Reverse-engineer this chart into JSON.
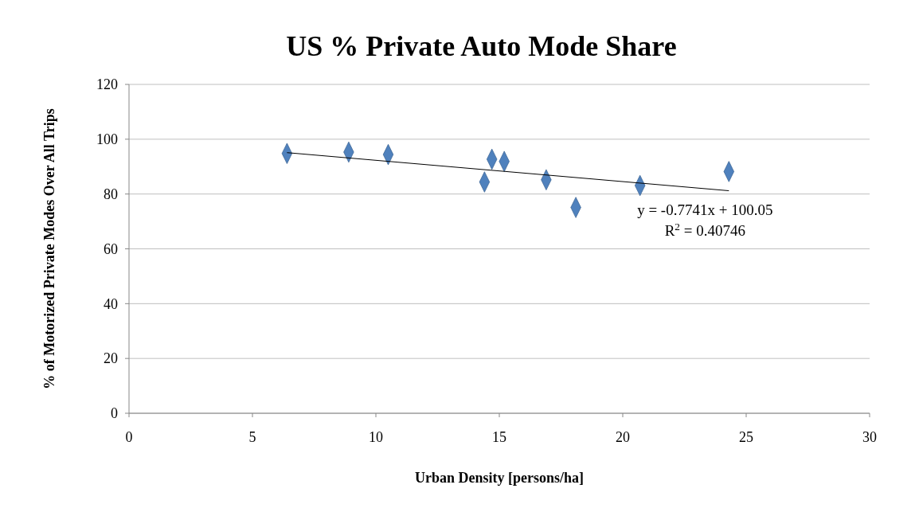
{
  "chart_data": {
    "type": "scatter",
    "title": "US % Private Auto Mode Share",
    "xlabel": "Urban Density [persons/ha]",
    "ylabel": "% of Motorized Private Modes Over All Trips",
    "series": [
      {
        "color": "#4f81bd",
        "x": [
          6.4,
          8.9,
          10.5,
          14.4,
          14.7,
          15.2,
          16.9,
          18.1,
          20.7,
          24.3
        ],
        "values": [
          94.8,
          95.3,
          94.4,
          84.4,
          92.7,
          91.9,
          85.2,
          75.1,
          83.1,
          88.2
        ]
      },
      {
        "type": "line",
        "marker": "none",
        "color": "#000000",
        "x": [
          6.4,
          24.3
        ],
        "values": [
          95.1,
          81.2
        ]
      }
    ],
    "marker": "diamond",
    "xlim": [
      0,
      30
    ],
    "xticks": [
      0,
      5,
      10,
      15,
      20,
      25,
      30
    ],
    "ylim": [
      0,
      120
    ],
    "yticks": [
      0,
      20,
      40,
      60,
      80,
      100,
      120
    ],
    "grid": "y",
    "annotations": [
      {
        "text": "y = -0.7741x + 100.05",
        "x": 24.3,
        "y": 81.2
      },
      {
        "text": "R$^{2}$ = 0.40746",
        "x": 24.3,
        "y": 81.2
      }
    ]
  }
}
